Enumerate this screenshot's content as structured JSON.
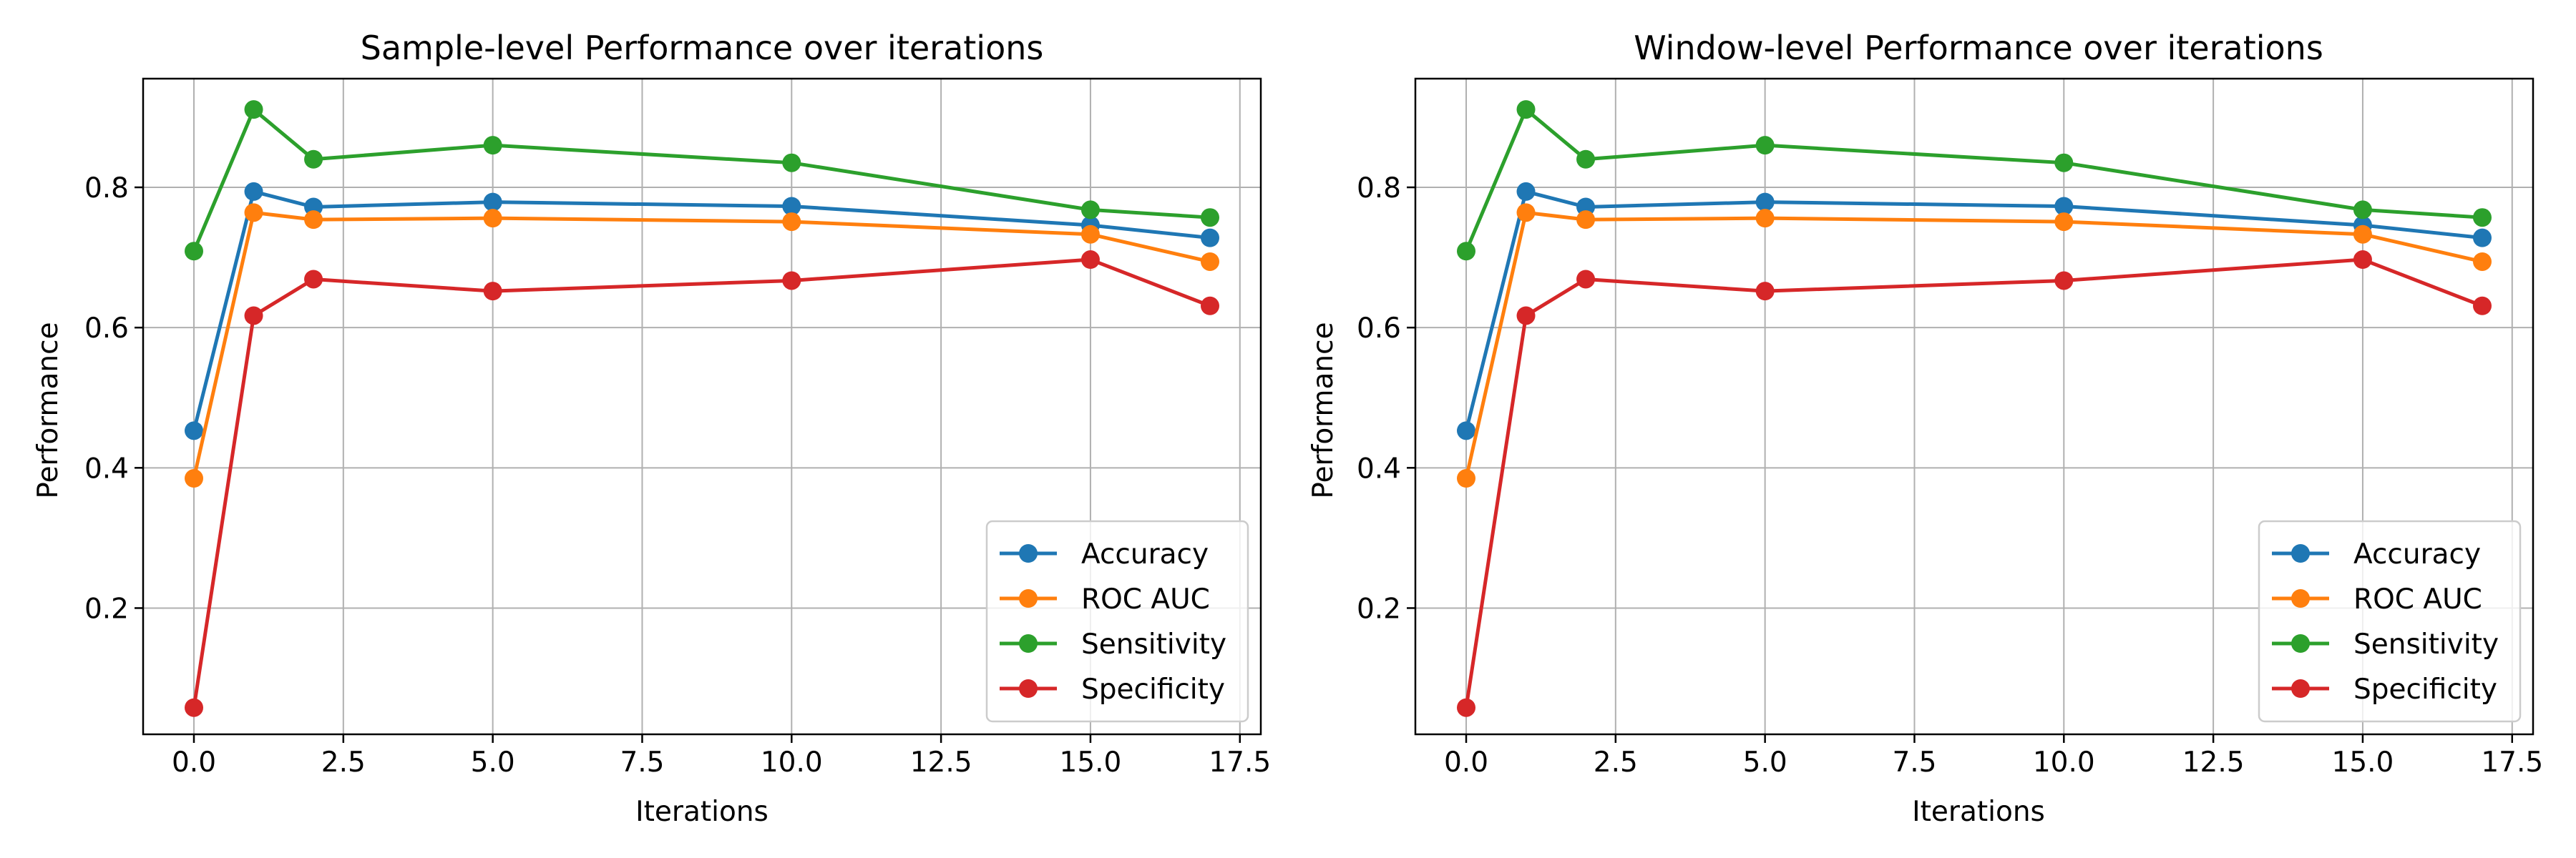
{
  "chart_data": [
    {
      "type": "line",
      "title": "Sample-level Performance over iterations",
      "xlabel": "Iterations",
      "ylabel": "Performance",
      "x": [
        0,
        1,
        2,
        5,
        10,
        15,
        17
      ],
      "xlim": [
        -0.85,
        17.85
      ],
      "ylim": [
        0.02,
        0.955
      ],
      "xticks": [
        "0.0",
        "2.5",
        "5.0",
        "7.5",
        "10.0",
        "12.5",
        "15.0",
        "17.5"
      ],
      "yticks": [
        "0.2",
        "0.4",
        "0.6",
        "0.8"
      ],
      "grid": true,
      "legend_position": "lower-right",
      "series": [
        {
          "name": "Accuracy",
          "color": "#1f77b4",
          "values": [
            0.453,
            0.794,
            0.772,
            0.779,
            0.773,
            0.746,
            0.728
          ]
        },
        {
          "name": "ROC AUC",
          "color": "#ff7f0e",
          "values": [
            0.385,
            0.764,
            0.754,
            0.756,
            0.751,
            0.733,
            0.694
          ]
        },
        {
          "name": "Sensitivity",
          "color": "#2ca02c",
          "values": [
            0.709,
            0.911,
            0.84,
            0.86,
            0.835,
            0.768,
            0.757
          ]
        },
        {
          "name": "Specificity",
          "color": "#d62728",
          "values": [
            0.058,
            0.617,
            0.669,
            0.652,
            0.667,
            0.697,
            0.631
          ]
        }
      ]
    },
    {
      "type": "line",
      "title": "Window-level Performance over iterations",
      "xlabel": "Iterations",
      "ylabel": "Performance",
      "x": [
        0,
        1,
        2,
        5,
        10,
        15,
        17
      ],
      "xlim": [
        -0.85,
        17.85
      ],
      "ylim": [
        0.02,
        0.955
      ],
      "xticks": [
        "0.0",
        "2.5",
        "5.0",
        "7.5",
        "10.0",
        "12.5",
        "15.0",
        "17.5"
      ],
      "yticks": [
        "0.2",
        "0.4",
        "0.6",
        "0.8"
      ],
      "grid": true,
      "legend_position": "lower-right",
      "series": [
        {
          "name": "Accuracy",
          "color": "#1f77b4",
          "values": [
            0.453,
            0.794,
            0.772,
            0.779,
            0.773,
            0.746,
            0.728
          ]
        },
        {
          "name": "ROC AUC",
          "color": "#ff7f0e",
          "values": [
            0.385,
            0.764,
            0.754,
            0.756,
            0.751,
            0.733,
            0.694
          ]
        },
        {
          "name": "Sensitivity",
          "color": "#2ca02c",
          "values": [
            0.709,
            0.911,
            0.84,
            0.86,
            0.835,
            0.768,
            0.757
          ]
        },
        {
          "name": "Specificity",
          "color": "#d62728",
          "values": [
            0.058,
            0.617,
            0.669,
            0.652,
            0.667,
            0.697,
            0.631
          ]
        }
      ]
    }
  ]
}
